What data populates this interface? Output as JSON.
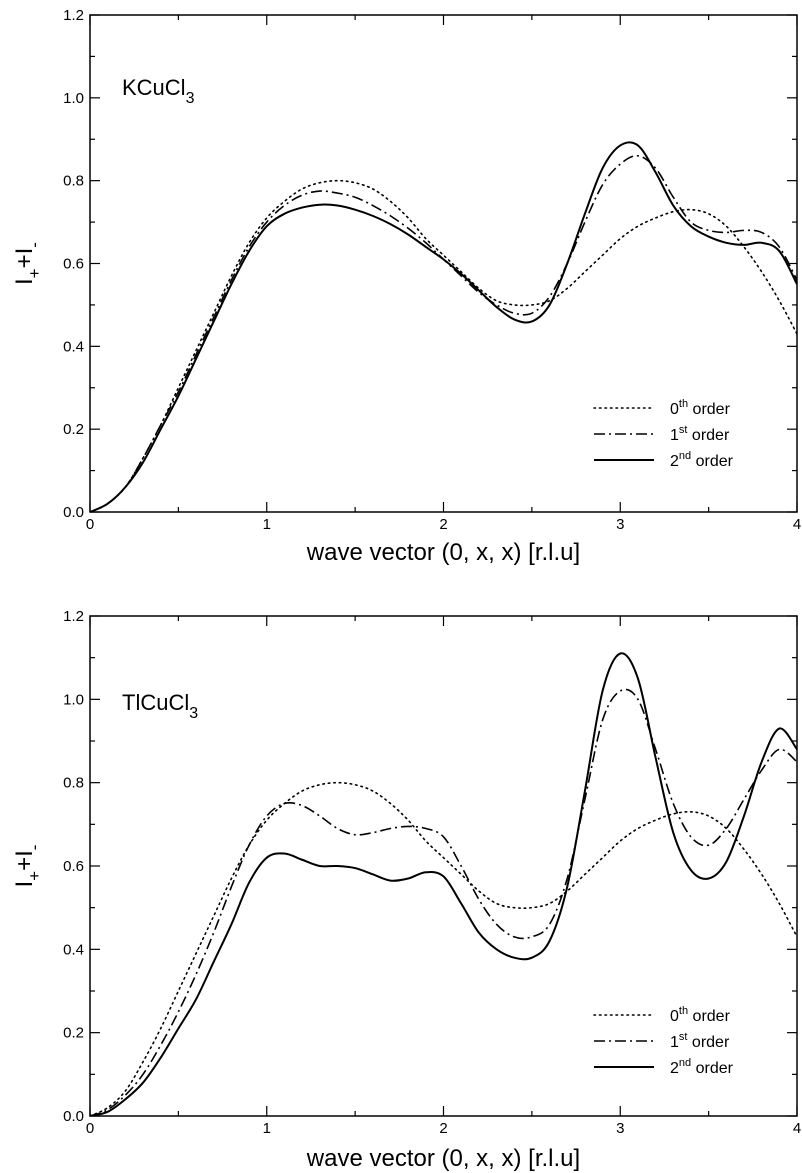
{
  "chart_data": [
    {
      "type": "line",
      "panel_label": {
        "base": "KCuCl",
        "sub": "3"
      },
      "xlabel": "wave vector (0, x, x) [r.l.u]",
      "ylabel": {
        "base1": "I",
        "sub1": "+",
        "mid": "+I",
        "sub2": "-"
      },
      "xlim": [
        0,
        4
      ],
      "ylim": [
        0,
        1.2
      ],
      "x_ticks": [
        "0",
        "1",
        "2",
        "3",
        "4"
      ],
      "y_ticks": [
        "0.0",
        "0.2",
        "0.4",
        "0.6",
        "0.8",
        "1.0",
        "1.2"
      ],
      "legend_position": "bottom-right",
      "series": [
        {
          "name": "0th order",
          "legend": {
            "base": "0",
            "sup": "th",
            "rest": " order"
          },
          "style": "dotted",
          "x": [
            0,
            0.1,
            0.2,
            0.3,
            0.4,
            0.5,
            0.6,
            0.7,
            0.8,
            0.9,
            1.0,
            1.1,
            1.2,
            1.3,
            1.4,
            1.5,
            1.6,
            1.7,
            1.8,
            1.9,
            2.0,
            2.1,
            2.2,
            2.3,
            2.4,
            2.5,
            2.6,
            2.7,
            2.8,
            2.9,
            3.0,
            3.1,
            3.2,
            3.3,
            3.4,
            3.5,
            3.6,
            3.7,
            3.8,
            3.9,
            4.0
          ],
          "y": [
            0,
            0.02,
            0.06,
            0.13,
            0.21,
            0.3,
            0.39,
            0.48,
            0.57,
            0.65,
            0.71,
            0.75,
            0.78,
            0.795,
            0.8,
            0.795,
            0.78,
            0.75,
            0.71,
            0.66,
            0.62,
            0.58,
            0.54,
            0.51,
            0.5,
            0.5,
            0.51,
            0.54,
            0.58,
            0.62,
            0.66,
            0.69,
            0.71,
            0.725,
            0.73,
            0.72,
            0.69,
            0.64,
            0.58,
            0.51,
            0.43
          ]
        },
        {
          "name": "1st order",
          "legend": {
            "base": "1",
            "sup": "st",
            "rest": " order"
          },
          "style": "dashdot",
          "x": [
            0,
            0.1,
            0.2,
            0.3,
            0.4,
            0.5,
            0.6,
            0.7,
            0.8,
            0.9,
            1.0,
            1.1,
            1.2,
            1.3,
            1.4,
            1.5,
            1.6,
            1.7,
            1.8,
            1.9,
            2.0,
            2.1,
            2.2,
            2.3,
            2.4,
            2.5,
            2.6,
            2.7,
            2.8,
            2.9,
            3.0,
            3.1,
            3.2,
            3.3,
            3.4,
            3.5,
            3.6,
            3.7,
            3.8,
            3.9,
            4.0
          ],
          "y": [
            0,
            0.02,
            0.06,
            0.13,
            0.21,
            0.29,
            0.38,
            0.47,
            0.56,
            0.64,
            0.7,
            0.74,
            0.765,
            0.775,
            0.77,
            0.76,
            0.74,
            0.715,
            0.685,
            0.65,
            0.61,
            0.57,
            0.53,
            0.5,
            0.48,
            0.48,
            0.52,
            0.6,
            0.7,
            0.79,
            0.84,
            0.86,
            0.83,
            0.76,
            0.7,
            0.68,
            0.675,
            0.68,
            0.675,
            0.64,
            0.56
          ]
        },
        {
          "name": "2nd order",
          "legend": {
            "base": "2",
            "sup": "nd",
            "rest": " order"
          },
          "style": "solid",
          "x": [
            0,
            0.1,
            0.2,
            0.3,
            0.4,
            0.5,
            0.6,
            0.7,
            0.8,
            0.9,
            1.0,
            1.1,
            1.2,
            1.3,
            1.4,
            1.5,
            1.6,
            1.7,
            1.8,
            1.9,
            2.0,
            2.1,
            2.2,
            2.3,
            2.4,
            2.5,
            2.6,
            2.7,
            2.8,
            2.9,
            3.0,
            3.1,
            3.2,
            3.3,
            3.4,
            3.5,
            3.6,
            3.7,
            3.8,
            3.9,
            4.0
          ],
          "y": [
            0,
            0.02,
            0.06,
            0.12,
            0.2,
            0.28,
            0.37,
            0.46,
            0.55,
            0.63,
            0.69,
            0.72,
            0.735,
            0.742,
            0.74,
            0.73,
            0.715,
            0.695,
            0.67,
            0.64,
            0.61,
            0.575,
            0.535,
            0.495,
            0.465,
            0.46,
            0.5,
            0.6,
            0.72,
            0.83,
            0.885,
            0.885,
            0.82,
            0.74,
            0.69,
            0.665,
            0.65,
            0.645,
            0.65,
            0.63,
            0.55
          ]
        }
      ]
    },
    {
      "type": "line",
      "panel_label": {
        "base": "TlCuCl",
        "sub": "3"
      },
      "xlabel": "wave vector (0, x, x) [r.l.u]",
      "ylabel": {
        "base1": "I",
        "sub1": "+",
        "mid": "+I",
        "sub2": "-"
      },
      "xlim": [
        0,
        4
      ],
      "ylim": [
        0,
        1.2
      ],
      "x_ticks": [
        "0",
        "1",
        "2",
        "3",
        "4"
      ],
      "y_ticks": [
        "0.0",
        "0.2",
        "0.4",
        "0.6",
        "0.8",
        "1.0",
        "1.2"
      ],
      "legend_position": "bottom-right",
      "series": [
        {
          "name": "0th order",
          "legend": {
            "base": "0",
            "sup": "th",
            "rest": " order"
          },
          "style": "dotted",
          "x": [
            0,
            0.1,
            0.2,
            0.3,
            0.4,
            0.5,
            0.6,
            0.7,
            0.8,
            0.9,
            1.0,
            1.1,
            1.2,
            1.3,
            1.4,
            1.5,
            1.6,
            1.7,
            1.8,
            1.9,
            2.0,
            2.1,
            2.2,
            2.3,
            2.4,
            2.5,
            2.6,
            2.7,
            2.8,
            2.9,
            3.0,
            3.1,
            3.2,
            3.3,
            3.4,
            3.5,
            3.6,
            3.7,
            3.8,
            3.9,
            4.0
          ],
          "y": [
            0,
            0.02,
            0.06,
            0.13,
            0.21,
            0.3,
            0.39,
            0.48,
            0.57,
            0.65,
            0.71,
            0.75,
            0.78,
            0.795,
            0.8,
            0.795,
            0.78,
            0.75,
            0.71,
            0.66,
            0.62,
            0.58,
            0.54,
            0.51,
            0.5,
            0.5,
            0.51,
            0.54,
            0.58,
            0.62,
            0.66,
            0.69,
            0.71,
            0.725,
            0.73,
            0.72,
            0.69,
            0.64,
            0.58,
            0.51,
            0.43
          ]
        },
        {
          "name": "1st order",
          "legend": {
            "base": "1",
            "sup": "st",
            "rest": " order"
          },
          "style": "dashdot",
          "x": [
            0,
            0.1,
            0.2,
            0.3,
            0.4,
            0.5,
            0.6,
            0.7,
            0.8,
            0.9,
            1.0,
            1.1,
            1.2,
            1.3,
            1.4,
            1.5,
            1.6,
            1.7,
            1.8,
            1.9,
            2.0,
            2.1,
            2.2,
            2.3,
            2.4,
            2.5,
            2.6,
            2.7,
            2.8,
            2.9,
            3.0,
            3.1,
            3.2,
            3.3,
            3.4,
            3.5,
            3.6,
            3.7,
            3.8,
            3.9,
            4.0
          ],
          "y": [
            0,
            0.015,
            0.05,
            0.1,
            0.17,
            0.25,
            0.34,
            0.44,
            0.55,
            0.65,
            0.72,
            0.75,
            0.745,
            0.72,
            0.69,
            0.675,
            0.68,
            0.69,
            0.695,
            0.69,
            0.67,
            0.6,
            0.52,
            0.46,
            0.43,
            0.43,
            0.46,
            0.57,
            0.76,
            0.95,
            1.02,
            1.0,
            0.88,
            0.75,
            0.67,
            0.65,
            0.69,
            0.76,
            0.83,
            0.88,
            0.85
          ]
        },
        {
          "name": "2nd order",
          "legend": {
            "base": "2",
            "sup": "nd",
            "rest": " order"
          },
          "style": "solid",
          "x": [
            0,
            0.1,
            0.2,
            0.3,
            0.4,
            0.5,
            0.6,
            0.7,
            0.8,
            0.9,
            1.0,
            1.1,
            1.2,
            1.3,
            1.4,
            1.5,
            1.6,
            1.7,
            1.8,
            1.9,
            2.0,
            2.1,
            2.2,
            2.3,
            2.4,
            2.5,
            2.6,
            2.7,
            2.8,
            2.9,
            3.0,
            3.1,
            3.2,
            3.3,
            3.4,
            3.5,
            3.6,
            3.7,
            3.8,
            3.9,
            4.0
          ],
          "y": [
            0,
            0.01,
            0.04,
            0.08,
            0.14,
            0.21,
            0.28,
            0.37,
            0.46,
            0.56,
            0.62,
            0.63,
            0.615,
            0.6,
            0.6,
            0.595,
            0.58,
            0.565,
            0.57,
            0.585,
            0.575,
            0.51,
            0.44,
            0.4,
            0.38,
            0.38,
            0.42,
            0.55,
            0.78,
            1.02,
            1.11,
            1.05,
            0.86,
            0.68,
            0.59,
            0.57,
            0.61,
            0.72,
            0.85,
            0.93,
            0.88
          ]
        }
      ]
    }
  ]
}
